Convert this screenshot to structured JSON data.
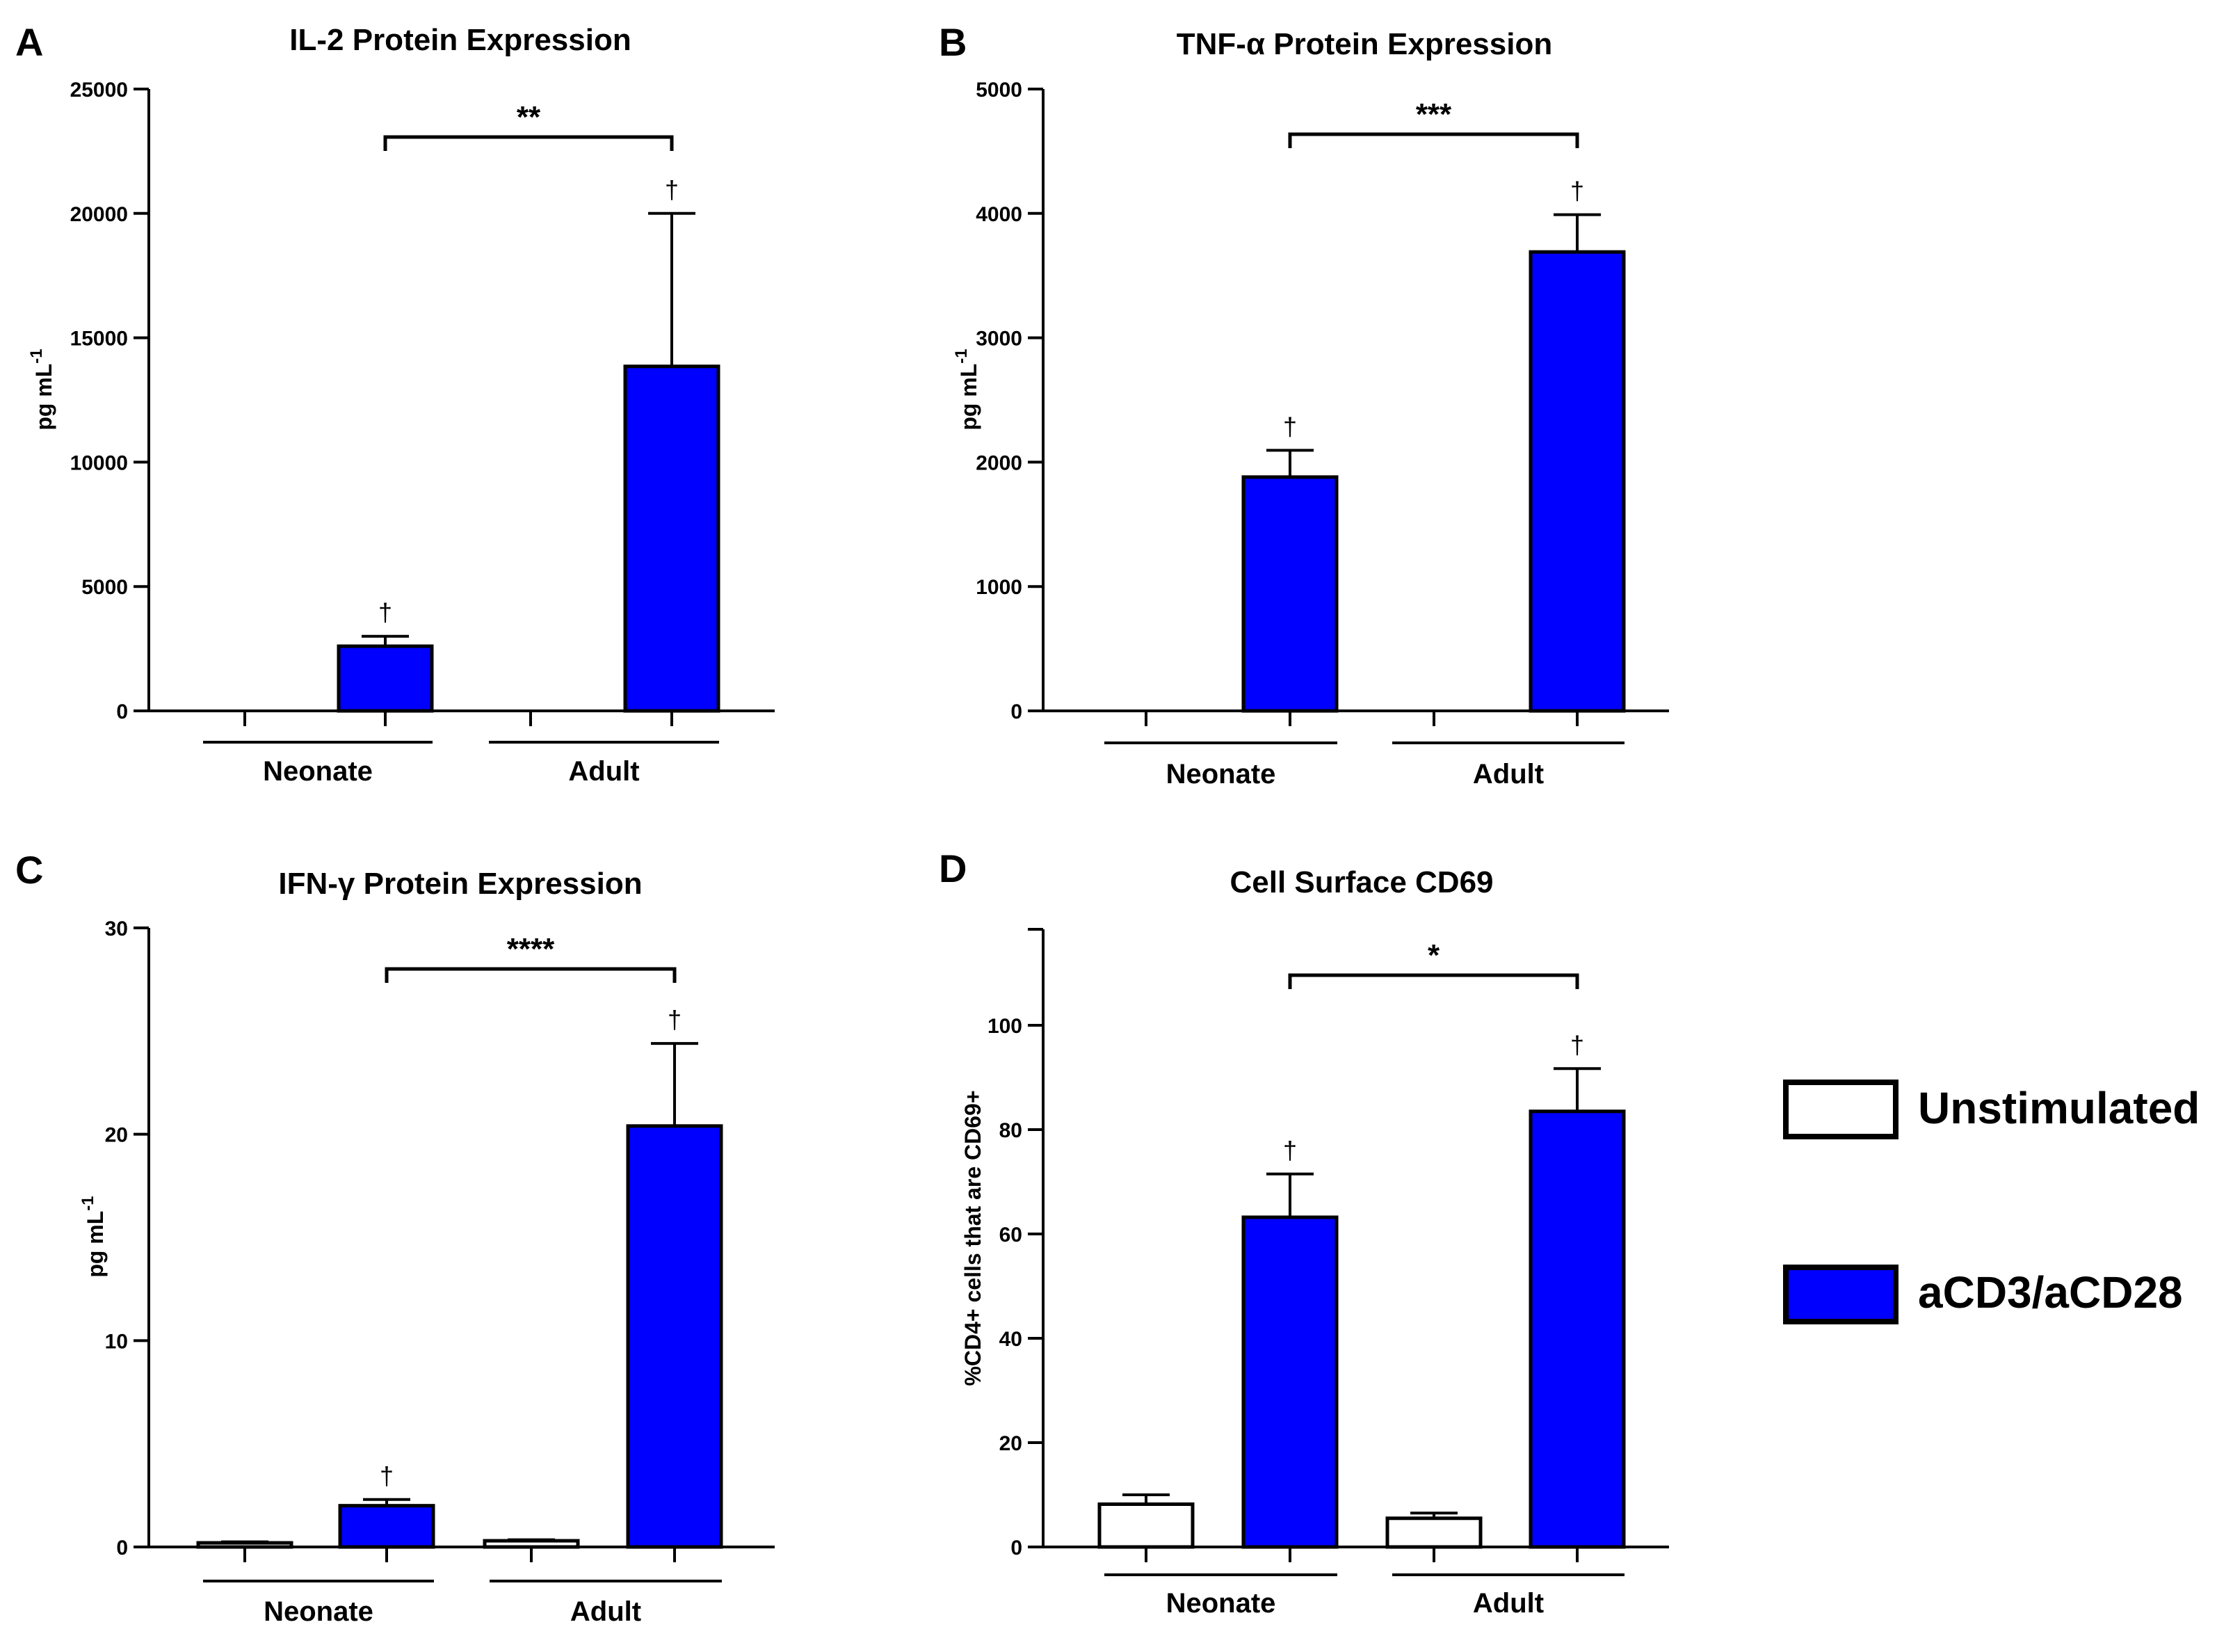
{
  "colors": {
    "stimulated": "#0000ff",
    "unstimulated": "#ffffff",
    "outline": "#000000"
  },
  "legend": {
    "items": [
      {
        "label": "Unstimulated",
        "color": "#ffffff"
      },
      {
        "label": "aCD3/aCD28",
        "color": "#0000ff"
      }
    ]
  },
  "chart_data": [
    {
      "panel": "A",
      "type": "bar",
      "title": "IL-2 Protein  Expression",
      "ylabel": "pg mL",
      "ylabel_sup": "-1",
      "ylim": [
        0,
        25000
      ],
      "yticks": [
        0,
        5000,
        10000,
        15000,
        20000,
        25000
      ],
      "groups": [
        "Neonate",
        "Adult"
      ],
      "series": [
        {
          "name": "Unstimulated",
          "values": [
            0,
            0
          ],
          "errors": [
            0,
            0
          ]
        },
        {
          "name": "aCD3/aCD28",
          "values": [
            2600,
            13850
          ],
          "errors": [
            400,
            6150
          ]
        }
      ],
      "dagger_marks": [
        "†",
        "†"
      ],
      "significance": {
        "label": "**"
      }
    },
    {
      "panel": "B",
      "type": "bar",
      "title": "TNF-α Protein Expression",
      "ylabel": "pg mL",
      "ylabel_sup": "-1",
      "ylim": [
        0,
        5000
      ],
      "yticks": [
        0,
        1000,
        2000,
        3000,
        4000,
        5000
      ],
      "groups": [
        "Neonate",
        "Adult"
      ],
      "series": [
        {
          "name": "Unstimulated",
          "values": [
            0,
            0
          ],
          "errors": [
            0,
            0
          ]
        },
        {
          "name": "aCD3/aCD28",
          "values": [
            1880,
            3690
          ],
          "errors": [
            215,
            300
          ]
        }
      ],
      "dagger_marks": [
        "†",
        "†"
      ],
      "significance": {
        "label": "***"
      }
    },
    {
      "panel": "C",
      "type": "bar",
      "title": "IFN-γ Protein Expression",
      "ylabel": "pg mL",
      "ylabel_sup": "-1",
      "ylim": [
        0,
        30
      ],
      "yticks": [
        0,
        10,
        20,
        30
      ],
      "groups": [
        "Neonate",
        "Adult"
      ],
      "series": [
        {
          "name": "Unstimulated",
          "values": [
            0.2,
            0.3
          ],
          "errors": [
            0.05,
            0.05
          ]
        },
        {
          "name": "aCD3/aCD28",
          "values": [
            2.0,
            20.4
          ],
          "errors": [
            0.3,
            4.0
          ]
        }
      ],
      "dagger_marks": [
        "†",
        "†"
      ],
      "significance": {
        "label": "****"
      }
    },
    {
      "panel": "D",
      "type": "bar",
      "title": "Cell Surface CD69",
      "ylabel": "%CD4+ cells that are CD69+",
      "ylabel_sup": "",
      "ylim": [
        0,
        120
      ],
      "yticks": [
        0,
        20,
        40,
        60,
        80,
        100
      ],
      "groups": [
        "Neonate",
        "Adult"
      ],
      "series": [
        {
          "name": "Unstimulated",
          "values": [
            8.2,
            5.5
          ],
          "errors": [
            1.8,
            1.0
          ]
        },
        {
          "name": "aCD3/aCD28",
          "values": [
            63.2,
            83.5
          ],
          "errors": [
            8.3,
            8.2
          ]
        }
      ],
      "dagger_marks": [
        "†",
        "†"
      ],
      "significance": {
        "label": "*"
      }
    }
  ]
}
